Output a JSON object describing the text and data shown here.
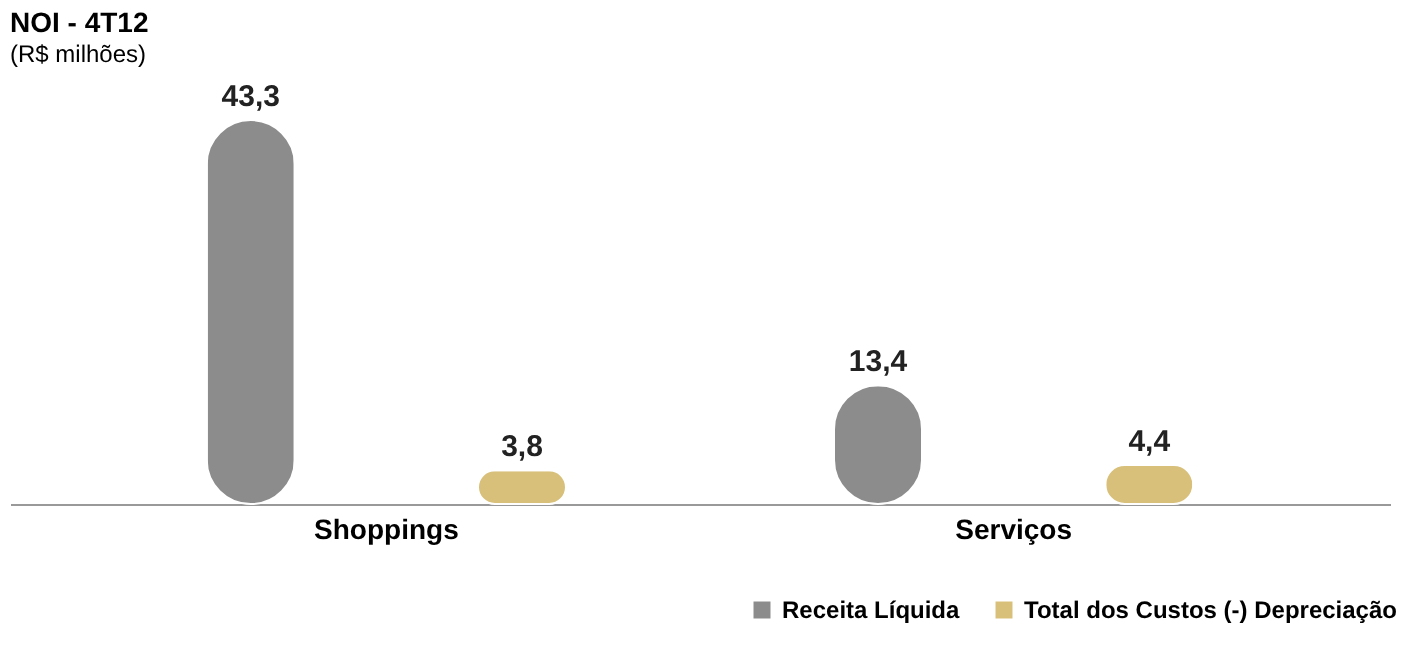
{
  "chart_data": {
    "type": "bar",
    "title": "NOI - 4T12",
    "subtitle": "(R$ milhões)",
    "categories": [
      "Shoppings",
      "Serviços"
    ],
    "series": [
      {
        "name": "Receita Líquida",
        "color": "#8c8c8c",
        "values": [
          43.3,
          13.4
        ],
        "value_labels": [
          "43,3",
          "13,4"
        ]
      },
      {
        "name": "Total dos Custos (-) Depreciação",
        "color": "#d8c07a",
        "values": [
          3.8,
          4.4
        ],
        "value_labels": [
          "3,8",
          "4,4"
        ]
      }
    ],
    "legend": "bottom right",
    "grid": false
  }
}
